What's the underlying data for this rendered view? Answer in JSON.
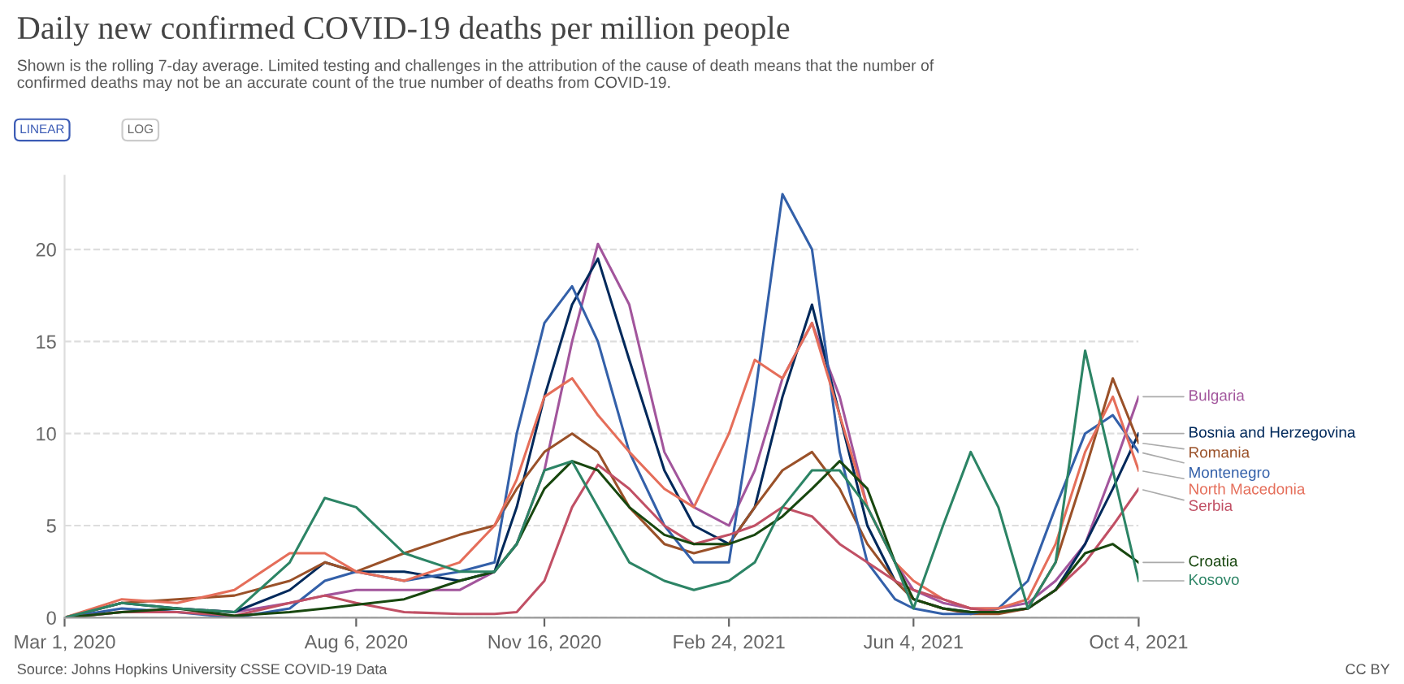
{
  "chart_data": {
    "type": "line",
    "title": "Daily new confirmed COVID-19 deaths per million people",
    "subtitle": "Shown is the rolling 7-day average. Limited testing and challenges in the attribution of the cause of death means that the number of\nconfirmed deaths may not be an accurate count of the true number of deaths from COVID-19.",
    "annotations": [
      "LINEAR",
      "LOG",
      "Source: Johns Hopkins University CSSE COVID-19 Data",
      "CC BY"
    ],
    "x": [
      "2020-03-01",
      "2020-04-01",
      "2020-05-01",
      "2020-06-01",
      "2020-07-01",
      "2020-07-20",
      "2020-08-06",
      "2020-09-01",
      "2020-10-01",
      "2020-10-20",
      "2020-11-01",
      "2020-11-16",
      "2020-12-01",
      "2020-12-15",
      "2021-01-01",
      "2021-01-20",
      "2021-02-05",
      "2021-02-24",
      "2021-03-10",
      "2021-03-25",
      "2021-04-10",
      "2021-04-25",
      "2021-05-10",
      "2021-05-25",
      "2021-06-04",
      "2021-06-20",
      "2021-07-05",
      "2021-07-20",
      "2021-08-05",
      "2021-08-20",
      "2021-09-05",
      "2021-09-20",
      "2021-10-04"
    ],
    "series": [
      {
        "name": "Bulgaria",
        "color": "#a2559c",
        "values": [
          0,
          0.3,
          0.5,
          0.3,
          0.8,
          1.2,
          1.5,
          1.5,
          1.5,
          2.5,
          4,
          8,
          15,
          20.3,
          17,
          9,
          6,
          5,
          8,
          13,
          16,
          12,
          6,
          3,
          1.5,
          0.8,
          0.5,
          0.5,
          0.8,
          2,
          4,
          8,
          12
        ]
      },
      {
        "name": "Bosnia and Herzegovina",
        "color": "#00295b",
        "values": [
          0,
          0.8,
          0.5,
          0.3,
          1.5,
          3,
          2.5,
          2.5,
          2,
          2.5,
          6,
          12,
          17,
          19.5,
          14,
          8,
          5,
          4,
          6,
          12,
          17,
          11,
          5,
          2,
          1,
          0.5,
          0.3,
          0.3,
          0.5,
          1.5,
          4,
          7,
          10
        ]
      },
      {
        "name": "Romania",
        "color": "#9a5129",
        "values": [
          0,
          0.8,
          1,
          1.2,
          2,
          3,
          2.5,
          3.5,
          4.5,
          5,
          7,
          9,
          10,
          9,
          6,
          4,
          3.5,
          4,
          6,
          8,
          9,
          7,
          4,
          2,
          1,
          0.5,
          0.2,
          0.2,
          0.5,
          3,
          8,
          13,
          9.5
        ]
      },
      {
        "name": "Montenegro",
        "color": "#3360a9",
        "values": [
          0,
          0.5,
          0.3,
          0,
          0.5,
          2,
          2.5,
          2,
          2.5,
          3,
          10,
          16,
          18,
          15,
          9,
          5,
          3,
          3,
          12,
          23,
          20,
          9,
          3,
          1,
          0.5,
          0.2,
          0.2,
          0.5,
          2,
          6,
          10,
          11,
          9
        ]
      },
      {
        "name": "North Macedonia",
        "color": "#e56e5a",
        "values": [
          0,
          1,
          0.8,
          1.5,
          3.5,
          3.5,
          2.5,
          2,
          3,
          5,
          7.5,
          12,
          13,
          11,
          9,
          7,
          6,
          10,
          14,
          13,
          16,
          11,
          6,
          3,
          2,
          1,
          0.5,
          0.5,
          1,
          4,
          9,
          12,
          8
        ]
      },
      {
        "name": "Serbia",
        "color": "#c15065",
        "values": [
          0,
          0.3,
          0.3,
          0.1,
          0.8,
          1.2,
          0.8,
          0.3,
          0.2,
          0.2,
          0.3,
          2,
          6,
          8.3,
          7,
          5,
          4,
          4.5,
          5,
          6,
          5.5,
          4,
          3,
          2,
          1.5,
          1,
          0.5,
          0.3,
          0.5,
          1.5,
          3,
          5,
          7
        ]
      },
      {
        "name": "Croatia",
        "color": "#18470f",
        "values": [
          0,
          0.3,
          0.5,
          0.1,
          0.3,
          0.5,
          0.7,
          1,
          2,
          2.5,
          4,
          7,
          8.5,
          8,
          6,
          4.5,
          4,
          4,
          4.5,
          5.5,
          7,
          8.5,
          7,
          3,
          1,
          0.5,
          0.3,
          0.3,
          0.5,
          1.5,
          3.5,
          4,
          3
        ]
      },
      {
        "name": "Kosovo",
        "color": "#2c8465",
        "values": [
          0,
          0.8,
          0.5,
          0.3,
          3,
          6.5,
          6,
          3.5,
          2.5,
          2.5,
          4,
          8,
          8.5,
          6,
          3,
          2,
          1.5,
          2,
          3,
          6,
          8,
          8,
          6,
          3,
          0.5,
          5,
          9,
          6,
          0.5,
          3,
          14.5,
          8,
          2
        ]
      }
    ],
    "xlim": [
      "2020-03-01",
      "2021-10-04"
    ],
    "xticks": [
      {
        "value": "2020-03-01",
        "label": "Mar 1, 2020"
      },
      {
        "value": "2020-08-06",
        "label": "Aug 6, 2020"
      },
      {
        "value": "2020-11-16",
        "label": "Nov 16, 2020"
      },
      {
        "value": "2021-02-24",
        "label": "Feb 24, 2021"
      },
      {
        "value": "2021-06-04",
        "label": "Jun 4, 2021"
      },
      {
        "value": "2021-10-04",
        "label": "Oct 4, 2021"
      }
    ],
    "ylim": [
      0,
      24
    ],
    "yticks": [
      0,
      5,
      10,
      15,
      20
    ],
    "grid": "y",
    "legend": "right",
    "line_style": "solid",
    "marker": "none"
  }
}
